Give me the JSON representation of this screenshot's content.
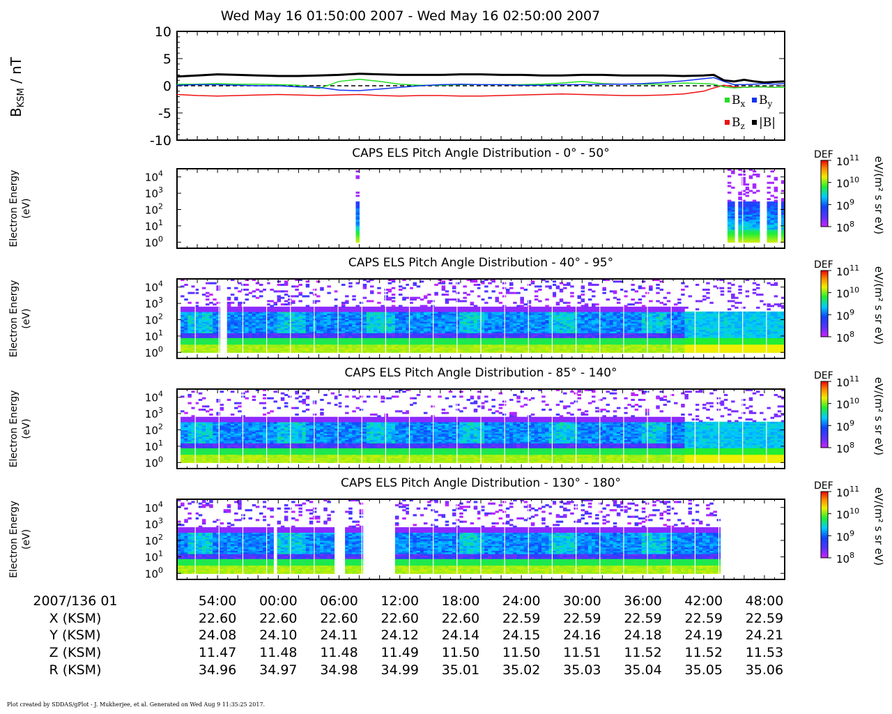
{
  "title": "Wed May 16 01:50:00 2007 - Wed May 16 02:50:00 2007",
  "footer": "Plot created by SDDAS/gPlot - J. Mukherjee, et al.  Generated on Wed Aug 9 11:35:25 2017.",
  "colors": {
    "bx": "#22dd22",
    "by": "#1133ee",
    "bz": "#ee1111",
    "bmag": "#000000"
  },
  "chart_data": [
    {
      "type": "line",
      "ylabel_main": "B",
      "ylabel_sub": "KSM",
      "ylabel_unit": " / nT",
      "ylim": [
        -10,
        10
      ],
      "yticks": [
        "10",
        "5",
        "0",
        "-5",
        "-10"
      ],
      "ytick_values": [
        10,
        5,
        0,
        -5,
        -10
      ],
      "x_minutes": [
        0,
        2,
        4,
        6,
        8,
        10,
        12,
        14,
        16,
        18,
        20,
        22,
        24,
        26,
        28,
        30,
        32,
        34,
        36,
        38,
        40,
        42,
        44,
        46,
        48,
        50,
        52,
        53,
        54,
        55,
        56,
        57,
        58,
        59,
        60
      ],
      "legend": [
        {
          "key": "bx",
          "main": "B",
          "sub": "x"
        },
        {
          "key": "by",
          "main": "B",
          "sub": "y"
        },
        {
          "key": "bz",
          "main": "B",
          "sub": "z"
        },
        {
          "key": "bmag",
          "main": "|B|",
          "sub": ""
        }
      ],
      "series": [
        {
          "key": "bx",
          "values": [
            0.3,
            0.3,
            0.4,
            0.3,
            0.3,
            0.2,
            0.1,
            -0.5,
            0.8,
            1.2,
            0.8,
            0.3,
            0.1,
            0.1,
            0.2,
            0.2,
            0.2,
            0.2,
            0.3,
            0.5,
            0.8,
            0.4,
            0.3,
            0.3,
            0.3,
            0.5,
            0.4,
            0.3,
            -0.2,
            -0.4,
            -0.3,
            -0.2,
            -0.2,
            -0.3,
            -0.3
          ]
        },
        {
          "key": "by",
          "values": [
            0.1,
            0.2,
            0.2,
            0.1,
            0.0,
            0.0,
            -0.2,
            -0.3,
            -0.8,
            -0.9,
            -0.6,
            -0.3,
            0.0,
            0.2,
            0.3,
            0.2,
            0.2,
            0.1,
            0.1,
            0.2,
            0.2,
            0.3,
            0.3,
            0.4,
            0.6,
            0.9,
            1.3,
            1.5,
            0.8,
            0.2,
            0.2,
            0.3,
            0.4,
            0.3,
            0.4
          ]
        },
        {
          "key": "bz",
          "values": [
            -1.6,
            -1.8,
            -1.9,
            -1.8,
            -1.7,
            -1.6,
            -1.7,
            -1.8,
            -1.7,
            -1.6,
            -1.8,
            -1.9,
            -1.8,
            -1.8,
            -1.9,
            -1.9,
            -1.8,
            -1.7,
            -1.6,
            -1.5,
            -1.6,
            -1.7,
            -1.8,
            -1.8,
            -1.7,
            -1.5,
            -1.0,
            -0.4,
            0.1,
            -0.2,
            -0.3,
            -0.2,
            -0.2,
            -0.3,
            -0.3
          ]
        },
        {
          "key": "bmag",
          "values": [
            1.7,
            1.9,
            2.1,
            2.0,
            1.9,
            1.8,
            1.8,
            1.9,
            2.0,
            2.2,
            2.1,
            2.0,
            2.0,
            2.0,
            2.1,
            2.1,
            2.0,
            2.0,
            1.9,
            1.9,
            2.0,
            2.0,
            1.9,
            1.9,
            1.9,
            1.8,
            1.9,
            2.0,
            1.0,
            0.8,
            1.1,
            0.8,
            0.6,
            0.7,
            0.8
          ]
        }
      ]
    },
    {
      "type": "heatmap",
      "title": "CAPS ELS Pitch Angle Distribution - 0° - 50°",
      "ylabel": "Electron Energy",
      "yunit": "(eV)",
      "yticks": [
        "10",
        "10",
        "10",
        "10",
        "10"
      ],
      "ytick_exp": [
        "4",
        "3",
        "2",
        "1",
        "0"
      ],
      "cbar": {
        "label": "DEF",
        "unit": "eV/(m² s sr eV)",
        "ticks": [
          "10",
          "10",
          "10",
          "10"
        ],
        "exp": [
          "11",
          "10",
          "9",
          "8"
        ]
      },
      "coverage_minutes": [
        [
          17.6,
          18.0
        ],
        [
          54.5,
          55.0
        ],
        [
          55.3,
          57.6
        ],
        [
          58.3,
          59.4
        ],
        [
          59.8,
          60
        ]
      ]
    },
    {
      "type": "heatmap",
      "title": "CAPS ELS Pitch Angle Distribution - 40° - 95°",
      "ylabel": "Electron Energy",
      "yunit": "(eV)",
      "yticks": [
        "10",
        "10",
        "10",
        "10",
        "10"
      ],
      "ytick_exp": [
        "4",
        "3",
        "2",
        "1",
        "0"
      ],
      "cbar": {
        "label": "DEF",
        "unit": "eV/(m² s sr eV)",
        "ticks": [
          "10",
          "10",
          "10",
          "10"
        ],
        "exp": [
          "11",
          "10",
          "9",
          "8"
        ]
      },
      "coverage_minutes": [
        [
          0.5,
          4.1
        ],
        [
          4.9,
          60
        ]
      ]
    },
    {
      "type": "heatmap",
      "title": "CAPS ELS Pitch Angle Distribution - 85° - 140°",
      "ylabel": "Electron Energy",
      "yunit": "(eV)",
      "yticks": [
        "10",
        "10",
        "10",
        "10",
        "10"
      ],
      "ytick_exp": [
        "4",
        "3",
        "2",
        "1",
        "0"
      ],
      "cbar": {
        "label": "DEF",
        "unit": "eV/(m² s sr eV)",
        "ticks": [
          "10",
          "10",
          "10",
          "10"
        ],
        "exp": [
          "11",
          "10",
          "9",
          "8"
        ]
      },
      "coverage_minutes": [
        [
          0.2,
          60
        ]
      ]
    },
    {
      "type": "heatmap",
      "title": "CAPS ELS Pitch Angle Distribution - 130° - 180°",
      "ylabel": "Electron Energy",
      "yunit": "(eV)",
      "yticks": [
        "10",
        "10",
        "10",
        "10",
        "10"
      ],
      "ytick_exp": [
        "4",
        "3",
        "2",
        "1",
        "0"
      ],
      "cbar": {
        "label": "DEF",
        "unit": "eV/(m² s sr eV)",
        "ticks": [
          "10",
          "10",
          "10",
          "10"
        ],
        "exp": [
          "11",
          "10",
          "9",
          "8"
        ]
      },
      "coverage_minutes": [
        [
          0.1,
          9.6
        ],
        [
          10.0,
          15.6
        ],
        [
          16.7,
          18.5
        ],
        [
          21.5,
          53.5
        ]
      ]
    }
  ],
  "axis": {
    "row_labels": [
      "2007/136 01",
      "X (KSM)",
      "Y (KSM)",
      "Z (KSM)",
      "R (KSM)"
    ],
    "tick_minutes": [
      4,
      10,
      16,
      22,
      28,
      34,
      40,
      46,
      52,
      58
    ],
    "times": [
      "54:00",
      "00:00",
      "06:00",
      "12:00",
      "18:00",
      "24:00",
      "30:00",
      "36:00",
      "42:00",
      "48:00"
    ],
    "X": [
      "22.60",
      "22.60",
      "22.60",
      "22.60",
      "22.60",
      "22.59",
      "22.59",
      "22.59",
      "22.59",
      "22.59"
    ],
    "Y": [
      "24.08",
      "24.10",
      "24.11",
      "24.12",
      "24.14",
      "24.15",
      "24.16",
      "24.18",
      "24.19",
      "24.21"
    ],
    "Z": [
      "11.47",
      "11.48",
      "11.48",
      "11.49",
      "11.50",
      "11.50",
      "11.51",
      "11.52",
      "11.52",
      "11.53"
    ],
    "R": [
      "34.96",
      "34.97",
      "34.98",
      "34.99",
      "35.01",
      "35.02",
      "35.03",
      "35.04",
      "35.05",
      "35.06"
    ]
  }
}
